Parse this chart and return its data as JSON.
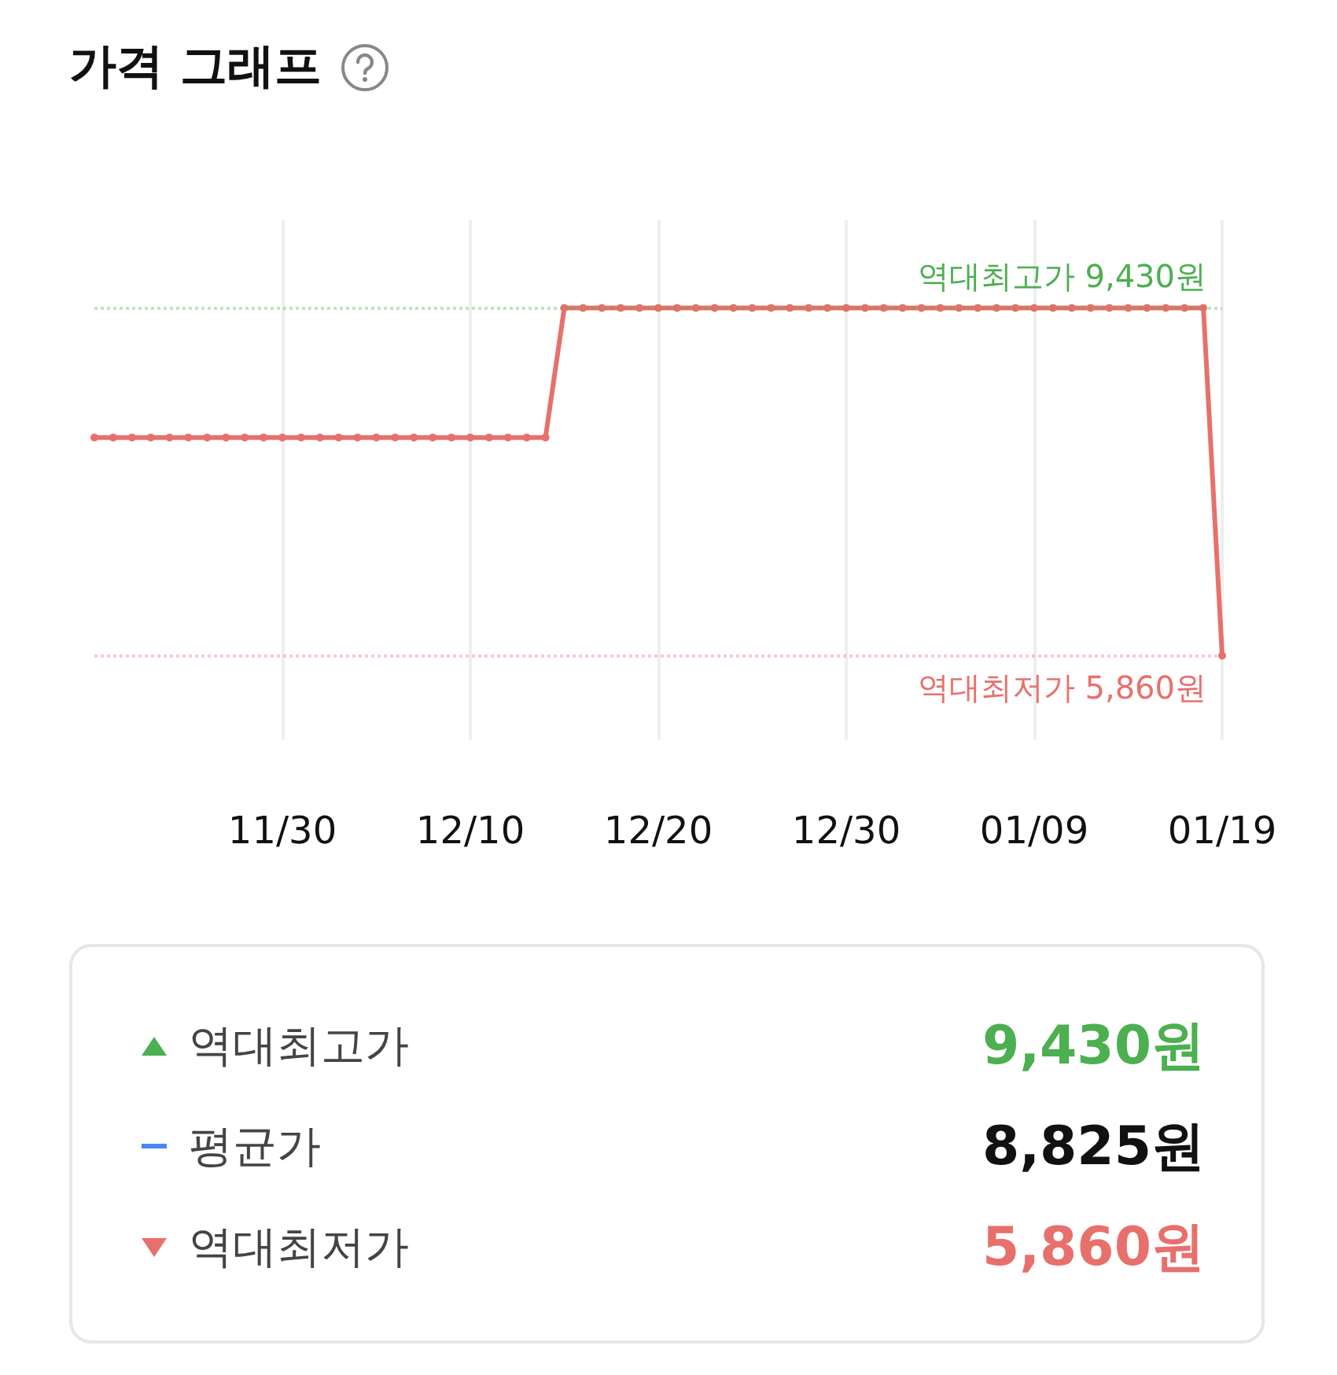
{
  "chart_data": [
    {
      "type": "line",
      "title": "가격 그래프",
      "categories": [
        null,
        null,
        null,
        null,
        null,
        null,
        null,
        null,
        null,
        null,
        "11/30",
        null,
        null,
        null,
        null,
        null,
        null,
        null,
        null,
        null,
        "12/10",
        null,
        null,
        null,
        null,
        null,
        null,
        null,
        null,
        null,
        "12/20",
        null,
        null,
        null,
        null,
        null,
        null,
        null,
        null,
        null,
        "12/30",
        null,
        null,
        null,
        null,
        null,
        null,
        null,
        null,
        null,
        "01/09",
        null,
        null,
        null,
        null,
        null,
        null,
        null,
        null,
        null,
        "01/19"
      ],
      "series": [
        {
          "color": "#e8706c",
          "values": [
            8100,
            8100,
            8100,
            8100,
            8100,
            8100,
            8100,
            8100,
            8100,
            8100,
            8100,
            8100,
            8100,
            8100,
            8100,
            8100,
            8100,
            8100,
            8100,
            8100,
            8100,
            8100,
            8100,
            8100,
            8100,
            9430,
            9430,
            9430,
            9430,
            9430,
            9430,
            9430,
            9430,
            9430,
            9430,
            9430,
            9430,
            9430,
            9430,
            9430,
            9430,
            9430,
            9430,
            9430,
            9430,
            9430,
            9430,
            9430,
            9430,
            9430,
            9430,
            9430,
            9430,
            9430,
            9430,
            9430,
            9430,
            9430,
            9430,
            9430,
            5860
          ]
        }
      ],
      "ylim": [
        5000,
        10330
      ],
      "tick_labels": "x",
      "grid": "x",
      "marker": "circle",
      "line_style": "solid",
      "ref_lines": [
        {
          "axis": "y",
          "value": 9430,
          "label": "역대최고가 9,430원",
          "color": "#4caf50",
          "line_style": "dotted"
        },
        {
          "axis": "y",
          "value": 5860,
          "label": "역대최저가 5,860원",
          "color": "#e8706c",
          "line_style": "dotted"
        }
      ]
    },
    {
      "type": "other",
      "annotations": [
        "역대최고가",
        "9,430원",
        "평균가",
        "8,825원",
        "역대최저가",
        "5,860원"
      ]
    }
  ]
}
